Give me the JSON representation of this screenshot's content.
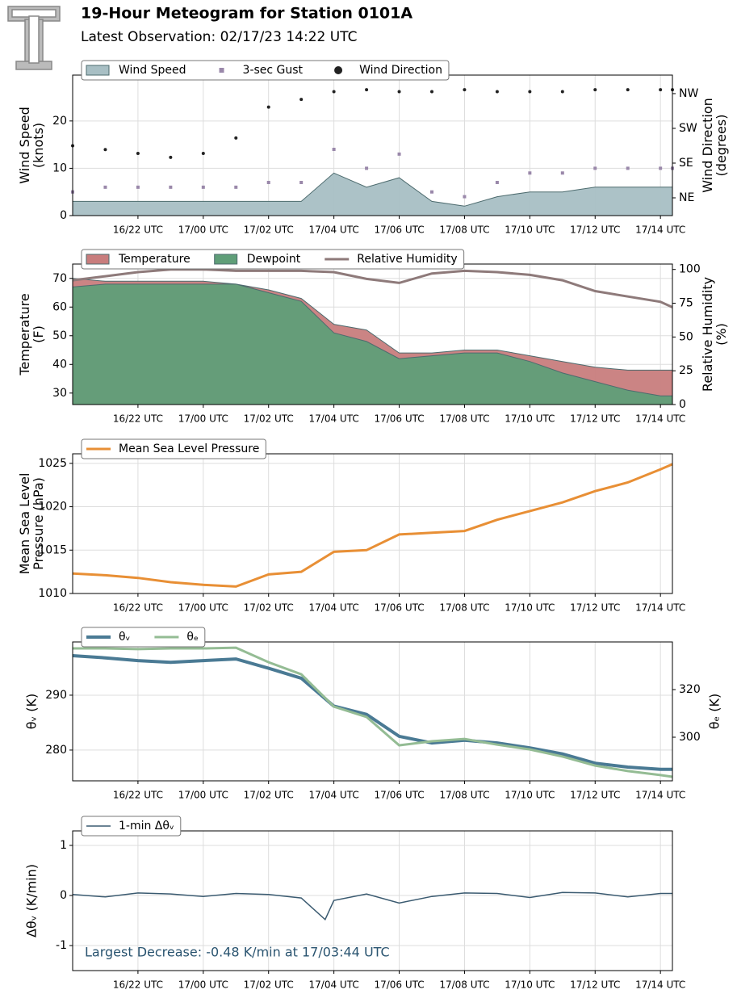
{
  "title": "19-Hour Meteogram for Station 0101A",
  "subtitle": "Latest Observation: 02/17/23 14:22 UTC",
  "chart_data": [
    {
      "type": "line",
      "grid": true,
      "x": [
        "16/20:00",
        "16/21:00",
        "16/22:00",
        "16/23:00",
        "17/00:00",
        "17/01:00",
        "17/02:00",
        "17/03:00",
        "17/04:00",
        "17/05:00",
        "17/06:00",
        "17/07:00",
        "17/08:00",
        "17/09:00",
        "17/10:00",
        "17/11:00",
        "17/12:00",
        "17/13:00",
        "17/14:00",
        "17/14:22"
      ],
      "xlim": [
        "16/20:00",
        "17/14:22"
      ],
      "xticks": [
        "16/22 UTC",
        "17/00 UTC",
        "17/02 UTC",
        "17/04 UTC",
        "17/06 UTC",
        "17/08 UTC",
        "17/10 UTC",
        "17/12 UTC",
        "17/14 UTC"
      ],
      "ylabel": [
        "Wind Speed",
        "(knots)"
      ],
      "ylim": [
        0,
        29.7
      ],
      "yticks": [
        0,
        10,
        20
      ],
      "y2label": [
        "Wind Direction",
        "(degrees)"
      ],
      "y2lim": [
        -1,
        363
      ],
      "y2ticks": [
        {
          "value": 45,
          "label": "NE"
        },
        {
          "value": 135,
          "label": "SE"
        },
        {
          "value": 225,
          "label": "SW"
        },
        {
          "value": 315,
          "label": "NW"
        }
      ],
      "series": [
        {
          "name": "Wind Speed",
          "mark": "area",
          "color": "#a8bfc4",
          "values": [
            3,
            3,
            3,
            3,
            3,
            3,
            3,
            3,
            9,
            6,
            8,
            3,
            2,
            4,
            5,
            5,
            6,
            6,
            6,
            6
          ]
        },
        {
          "name": "3-sec Gust",
          "mark": "square",
          "color": "#9a88aa",
          "values": [
            5,
            6,
            6,
            6,
            6,
            6,
            7,
            7,
            14,
            10,
            13,
            5,
            4,
            7,
            9,
            9,
            10,
            10,
            10,
            10
          ]
        },
        {
          "name": "Wind Direction",
          "mark": "dot",
          "color": "#222222",
          "axis": "y2",
          "values": [
            180,
            170,
            160,
            150,
            160,
            200,
            280,
            300,
            320,
            325,
            320,
            320,
            325,
            320,
            320,
            320,
            325,
            325,
            325,
            325
          ]
        }
      ]
    },
    {
      "type": "line",
      "grid": true,
      "x": [
        "16/20:00",
        "16/21:00",
        "16/22:00",
        "16/23:00",
        "17/00:00",
        "17/01:00",
        "17/02:00",
        "17/03:00",
        "17/04:00",
        "17/05:00",
        "17/06:00",
        "17/07:00",
        "17/08:00",
        "17/09:00",
        "17/10:00",
        "17/11:00",
        "17/12:00",
        "17/13:00",
        "17/14:00",
        "17/14:22"
      ],
      "xlim": [
        "16/20:00",
        "17/14:22"
      ],
      "xticks": [
        "16/22 UTC",
        "17/00 UTC",
        "17/02 UTC",
        "17/04 UTC",
        "17/06 UTC",
        "17/08 UTC",
        "17/10 UTC",
        "17/12 UTC",
        "17/14 UTC"
      ],
      "ylabel": [
        "Temperature",
        "(F)"
      ],
      "ylim": [
        26,
        75
      ],
      "yticks": [
        30,
        40,
        50,
        60,
        70
      ],
      "y2label": [
        "Relative Humidity",
        "(%)"
      ],
      "y2lim": [
        0,
        104
      ],
      "y2ticks": [
        0,
        25,
        50,
        75,
        100
      ],
      "series": [
        {
          "name": "Temperature",
          "mark": "area",
          "color": "#c87d7d",
          "values": [
            70,
            69,
            69,
            69,
            69,
            68,
            66,
            63,
            54,
            52,
            44,
            44,
            45,
            45,
            43,
            41,
            39,
            38,
            38,
            38
          ]
        },
        {
          "name": "Dewpoint",
          "mark": "area",
          "color": "#5f9e78",
          "values": [
            67,
            68,
            68,
            68,
            68,
            68,
            65,
            62,
            51,
            48,
            42,
            43,
            44,
            44,
            41,
            37,
            34,
            31,
            29,
            29
          ]
        },
        {
          "name": "Relative Humidity",
          "mark": "line",
          "color": "#8e7a7a",
          "axis": "y2",
          "values": [
            92,
            95,
            98,
            100,
            100,
            99,
            99,
            99,
            98,
            93,
            90,
            97,
            99,
            98,
            96,
            92,
            84,
            80,
            76,
            72
          ]
        }
      ]
    },
    {
      "type": "line",
      "grid": true,
      "x": [
        "16/20:00",
        "16/21:00",
        "16/22:00",
        "16/23:00",
        "17/00:00",
        "17/01:00",
        "17/02:00",
        "17/03:00",
        "17/04:00",
        "17/05:00",
        "17/06:00",
        "17/07:00",
        "17/08:00",
        "17/09:00",
        "17/10:00",
        "17/11:00",
        "17/12:00",
        "17/13:00",
        "17/14:00",
        "17/14:22"
      ],
      "xlim": [
        "16/20:00",
        "17/14:22"
      ],
      "xticks": [
        "16/22 UTC",
        "17/00 UTC",
        "17/02 UTC",
        "17/04 UTC",
        "17/06 UTC",
        "17/08 UTC",
        "17/10 UTC",
        "17/12 UTC",
        "17/14 UTC"
      ],
      "ylabel": [
        "Mean Sea Level",
        "Pressure (hPa)"
      ],
      "ylim": [
        1010,
        1026.1
      ],
      "yticks": [
        1010,
        1015,
        1020,
        1025
      ],
      "series": [
        {
          "name": "Mean Sea Level Pressure",
          "mark": "line",
          "color": "#e88f35",
          "values": [
            1012.3,
            1012.1,
            1011.8,
            1011.3,
            1011,
            1010.8,
            1012.2,
            1012.5,
            1014.8,
            1015,
            1016.8,
            1017,
            1017.2,
            1018.5,
            1019.5,
            1020.5,
            1021.8,
            1022.8,
            1024.3,
            1024.9
          ]
        }
      ]
    },
    {
      "type": "line",
      "grid": true,
      "x": [
        "16/20:00",
        "16/21:00",
        "16/22:00",
        "16/23:00",
        "17/00:00",
        "17/01:00",
        "17/02:00",
        "17/03:00",
        "17/04:00",
        "17/05:00",
        "17/06:00",
        "17/07:00",
        "17/08:00",
        "17/09:00",
        "17/10:00",
        "17/11:00",
        "17/12:00",
        "17/13:00",
        "17/14:00",
        "17/14:22"
      ],
      "xlim": [
        "16/20:00",
        "17/14:22"
      ],
      "xticks": [
        "16/22 UTC",
        "17/00 UTC",
        "17/02 UTC",
        "17/04 UTC",
        "17/06 UTC",
        "17/08 UTC",
        "17/10 UTC",
        "17/12 UTC",
        "17/14 UTC"
      ],
      "ylabel": [
        "θᵥ (K)"
      ],
      "ylim": [
        274.4,
        299.7
      ],
      "yticks": [
        280,
        290
      ],
      "y2label": [
        "θₑ (K)"
      ],
      "y2lim": [
        281.7,
        340
      ],
      "y2ticks": [
        300,
        320
      ],
      "series": [
        {
          "name": "θᵥ",
          "mark": "line",
          "color": "#4a7a94",
          "width": 4,
          "values": [
            297.2,
            296.8,
            296.3,
            296,
            296.3,
            296.6,
            294.9,
            293.1,
            288,
            286.5,
            282.5,
            281.3,
            281.8,
            281.3,
            280.4,
            279.3,
            277.6,
            276.9,
            276.5,
            276.5
          ]
        },
        {
          "name": "θₑ",
          "mark": "line",
          "color": "#94bc94",
          "width": 3,
          "axis": "y2",
          "values": [
            337.3,
            337.3,
            337,
            337.3,
            337.3,
            337.6,
            331.5,
            326.4,
            312.9,
            308.5,
            296.6,
            298.3,
            299.3,
            296.9,
            294.9,
            291.9,
            288.1,
            285.8,
            284.1,
            283.4
          ]
        }
      ]
    },
    {
      "type": "line",
      "grid": true,
      "x": [
        "16/20:00",
        "16/21:00",
        "16/22:00",
        "16/23:00",
        "17/00:00",
        "17/01:00",
        "17/02:00",
        "17/03:00",
        "17/03:44",
        "17/04:00",
        "17/05:00",
        "17/06:00",
        "17/07:00",
        "17/08:00",
        "17/09:00",
        "17/10:00",
        "17/11:00",
        "17/12:00",
        "17/13:00",
        "17/14:00",
        "17/14:22"
      ],
      "xlim": [
        "16/20:00",
        "17/14:22"
      ],
      "xticks": [
        "16/22 UTC",
        "17/00 UTC",
        "17/02 UTC",
        "17/04 UTC",
        "17/06 UTC",
        "17/08 UTC",
        "17/10 UTC",
        "17/12 UTC",
        "17/14 UTC"
      ],
      "ylabel": [
        "Δθᵥ (K/min)"
      ],
      "ylim": [
        -1.5,
        1.29
      ],
      "yticks": [
        -1,
        0,
        1
      ],
      "annotation": "Largest Decrease: -0.48 K/min at 17/03:44 UTC",
      "series": [
        {
          "name": "1-min Δθᵥ",
          "mark": "line",
          "color": "#3a5a70",
          "width": 1.5,
          "values": [
            0.02,
            -0.03,
            0.05,
            0.03,
            -0.02,
            0.04,
            0.02,
            -0.05,
            -0.48,
            -0.1,
            0.03,
            -0.15,
            -0.02,
            0.05,
            0.04,
            -0.04,
            0.06,
            0.05,
            -0.03,
            0.04,
            0.04
          ]
        }
      ]
    }
  ]
}
